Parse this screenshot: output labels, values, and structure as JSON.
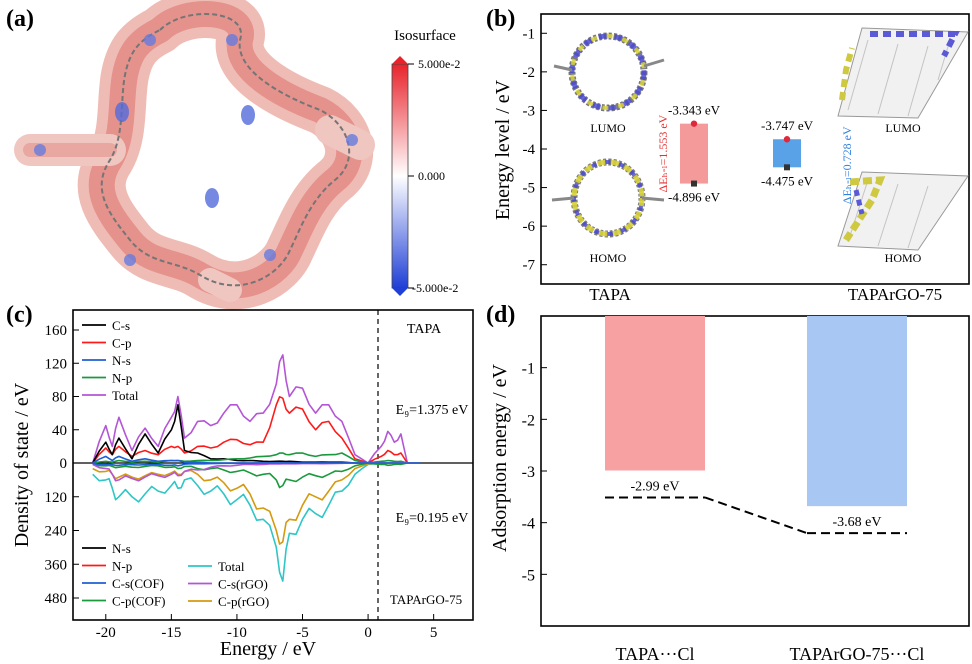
{
  "colors": {
    "iso_red": "#e8232b",
    "iso_blue": "#1f3fd6",
    "cs": "#000000",
    "cp": "#ff1a1a",
    "ns": "#1f5fd4",
    "np": "#1a9a3c",
    "total": "#b455d6",
    "bot_total": "#2ec6c6",
    "cs_cof": "#1f5fd4",
    "cp_cof": "#1a9a3c",
    "cs_rgo": "#b455d6",
    "cp_rgo": "#d49a10",
    "lumo_bar": "#f49a9a",
    "homo_bar": "#5aa2e8",
    "bar_a": "#f7a1a3",
    "bar_b": "#a9c7f3",
    "gap_a": "#e83030",
    "gap_b": "#2f7fe0"
  },
  "panel_a": {
    "label": "(a)",
    "molecule_icon": "tapa-cof-esp-surface",
    "colorbar": {
      "title": "Isosurface",
      "max": "5.000e-2",
      "mid": "0.000",
      "min": "-5.000e-2"
    }
  },
  "panel_b": {
    "label": "(b)",
    "ylabel": "Energy level / eV",
    "ylim": [
      -7.5,
      -0.5
    ],
    "yticks": [
      "-1",
      "-2",
      "-3",
      "-4",
      "-5",
      "-6",
      "-7"
    ],
    "left_caption": "TAPA",
    "right_caption": "TAPArGO-75",
    "orbitals": {
      "tapa_lumo": "LUMO",
      "tapa_homo": "HOMO",
      "rgo_lumo": "LUMO",
      "rgo_homo": "HOMO"
    },
    "levels": [
      {
        "name": "TAPA",
        "lumo": -3.343,
        "homo": -4.896,
        "lumo_label": "-3.343 eV",
        "homo_label": "-4.896 eV",
        "gap_label": "ΔEₕ-ₗ=1.553 eV"
      },
      {
        "name": "TAPArGO-75",
        "lumo": -3.747,
        "homo": -4.475,
        "lumo_label": "-3.747 eV",
        "homo_label": "-4.475 eV",
        "gap_label": "ΔEₕ-ₗ=0.728 eV"
      }
    ]
  },
  "panel_c": {
    "label": "(c)",
    "xlabel": "Energy / eV",
    "ylabel": "Density of state / eV",
    "xticks": [
      "-20",
      "-15",
      "-10",
      "-5",
      "0",
      "5"
    ],
    "yticks_top": [
      "160",
      "120",
      "80",
      "40",
      "0"
    ],
    "yticks_bottom": [
      "120",
      "240",
      "360",
      "480"
    ],
    "top_title": "TAPA",
    "top_gap": "E₉=1.375 eV",
    "bottom_title": "TAPArGO-75",
    "bottom_gap": "E₉=0.195 eV",
    "legend_top": [
      "C-s",
      "C-p",
      "N-s",
      "N-p",
      "Total"
    ],
    "legend_bottom_left": [
      "N-s",
      "N-p",
      "C-s(COF)",
      "C-p(COF)"
    ],
    "legend_bottom_right": [
      "Total",
      "C-s(rGO)",
      "C-p(rGO)"
    ]
  },
  "chart_data": [
    {
      "type": "line",
      "title": "TAPA",
      "xlabel": "Energy / eV",
      "ylabel": "Density of state / eV",
      "xlim": [
        -22.5,
        8
      ],
      "ylim": [
        0,
        170
      ],
      "x": [
        -21,
        -20,
        -19.5,
        -19,
        -18,
        -17,
        -16,
        -15,
        -14.5,
        -14,
        -13,
        -12,
        -11,
        -10,
        -9,
        -8,
        -7,
        -6.5,
        -6,
        -5,
        -4,
        -3,
        -2,
        -1,
        0,
        1,
        1.5,
        2,
        2.5,
        3,
        4
      ],
      "series": [
        {
          "name": "Total",
          "values": [
            0,
            45,
            20,
            55,
            15,
            42,
            20,
            55,
            80,
            30,
            50,
            45,
            60,
            70,
            50,
            60,
            95,
            130,
            80,
            90,
            60,
            70,
            50,
            10,
            0,
            20,
            38,
            25,
            35,
            0,
            0
          ]
        },
        {
          "name": "C-p",
          "values": [
            0,
            18,
            10,
            20,
            8,
            15,
            10,
            20,
            20,
            12,
            20,
            18,
            25,
            28,
            22,
            25,
            70,
            78,
            60,
            65,
            40,
            50,
            30,
            5,
            0,
            8,
            15,
            10,
            12,
            0,
            0
          ]
        },
        {
          "name": "C-s",
          "values": [
            0,
            25,
            10,
            30,
            5,
            35,
            12,
            40,
            70,
            15,
            12,
            5,
            5,
            3,
            3,
            2,
            2,
            2,
            2,
            1,
            1,
            1,
            1,
            0,
            0,
            0,
            0,
            0,
            0,
            0,
            0
          ]
        },
        {
          "name": "N-p",
          "values": [
            0,
            2,
            1,
            3,
            1,
            2,
            1,
            3,
            3,
            2,
            3,
            3,
            4,
            5,
            6,
            8,
            10,
            12,
            10,
            12,
            8,
            10,
            12,
            3,
            0,
            2,
            3,
            2,
            2,
            0,
            0
          ]
        },
        {
          "name": "N-s",
          "values": [
            0,
            8,
            3,
            8,
            2,
            5,
            2,
            3,
            3,
            1,
            1,
            0,
            0,
            0,
            0,
            0,
            0,
            0,
            0,
            0,
            0,
            0,
            0,
            0,
            0,
            0,
            0,
            0,
            0,
            0,
            0
          ]
        }
      ]
    },
    {
      "type": "line",
      "title": "TAPArGO-75",
      "xlabel": "Energy / eV",
      "ylabel": "Density of state / eV",
      "xlim": [
        -22.5,
        8
      ],
      "ylim": [
        -520,
        0
      ],
      "x": [
        -21,
        -20,
        -19.5,
        -19,
        -18,
        -17,
        -16,
        -15,
        -14.5,
        -14,
        -13,
        -12,
        -11,
        -10,
        -9,
        -8,
        -7,
        -6.5,
        -6,
        -5,
        -4,
        -3,
        -2,
        -1,
        0,
        1,
        1.5,
        2,
        2.5,
        3,
        4
      ],
      "series": [
        {
          "name": "Total",
          "values": [
            -40,
            -60,
            -90,
            -120,
            -120,
            -110,
            -100,
            -80,
            -90,
            -60,
            -80,
            -100,
            -110,
            -130,
            -150,
            -200,
            -300,
            -420,
            -250,
            -200,
            -180,
            -150,
            -100,
            -40,
            -5,
            0,
            0,
            0,
            0,
            0,
            0
          ]
        },
        {
          "name": "C-p(rGO)",
          "values": [
            -20,
            -30,
            -40,
            -50,
            -50,
            -45,
            -40,
            -35,
            -40,
            -30,
            -40,
            -60,
            -70,
            -90,
            -110,
            -160,
            -240,
            -280,
            -200,
            -150,
            -120,
            -100,
            -60,
            -20,
            -3,
            0,
            0,
            0,
            0,
            0,
            0
          ]
        },
        {
          "name": "C-p(COF)",
          "values": [
            -5,
            -10,
            -12,
            -15,
            -15,
            -12,
            -10,
            -15,
            -20,
            -12,
            -20,
            -20,
            -25,
            -30,
            -35,
            -40,
            -60,
            -80,
            -60,
            -50,
            -45,
            -40,
            -30,
            -10,
            0,
            -5,
            -8,
            -5,
            -5,
            0,
            0
          ]
        },
        {
          "name": "C-s(rGO)",
          "values": [
            -5,
            -20,
            -40,
            -60,
            -55,
            -50,
            -45,
            -40,
            -45,
            -30,
            -25,
            -15,
            -10,
            -8,
            -5,
            -5,
            -3,
            -3,
            -3,
            -2,
            -2,
            -2,
            -1,
            0,
            0,
            0,
            0,
            0,
            0,
            0,
            0
          ]
        },
        {
          "name": "C-s(COF)",
          "values": [
            -2,
            -5,
            -6,
            -8,
            -6,
            -6,
            -5,
            -8,
            -10,
            -4,
            -3,
            -2,
            -1,
            -1,
            -1,
            0,
            0,
            0,
            0,
            0,
            0,
            0,
            0,
            0,
            0,
            0,
            0,
            0,
            0,
            0,
            0
          ]
        }
      ]
    },
    {
      "type": "bar",
      "title": "",
      "categories": [
        "TAPA···Cl",
        "TAPArGO-75···Cl"
      ],
      "values": [
        -2.99,
        -3.68
      ],
      "labels": [
        "-2.99 eV",
        "-3.68 eV"
      ],
      "xlabel": "",
      "ylabel": "Adsorption energy / eV",
      "ylim": [
        -6,
        0
      ],
      "yticks": [
        "-1",
        "-2",
        "-3",
        "-4",
        "-5"
      ]
    }
  ]
}
